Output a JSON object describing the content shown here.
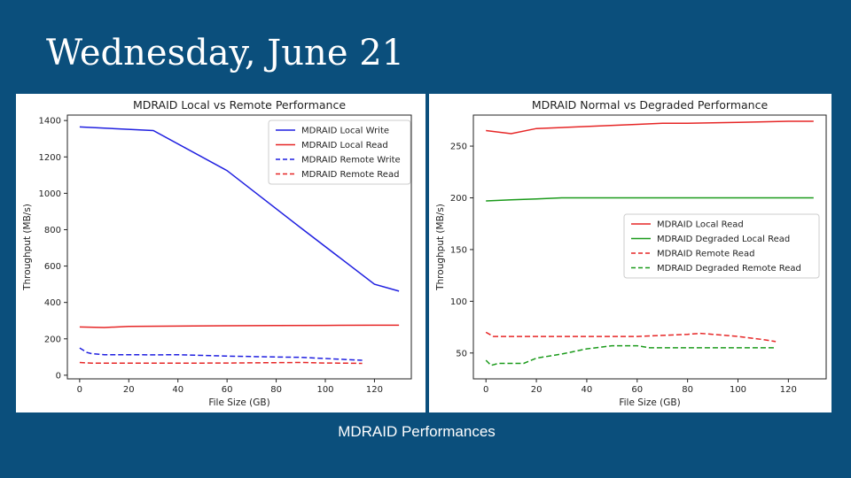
{
  "slide": {
    "title": "Wednesday, June 21",
    "caption": "MDRAID Performances",
    "background": "#0b4f7c"
  },
  "chart_data": [
    {
      "type": "line",
      "title": "MDRAID Local vs Remote Performance",
      "xlabel": "File Size (GB)",
      "ylabel": "Throughput (MB/s)",
      "xlim": [
        -5,
        135
      ],
      "ylim": [
        -20,
        1430
      ],
      "xticks": [
        0,
        20,
        40,
        60,
        80,
        100,
        120
      ],
      "yticks": [
        0,
        200,
        400,
        600,
        800,
        1000,
        1200,
        1400
      ],
      "grid": false,
      "legend_position": "top-right",
      "series": [
        {
          "name": "MDRAID Local Write",
          "color": "#1f1fe0",
          "dash": "solid",
          "x": [
            0,
            30,
            60,
            90,
            120,
            130
          ],
          "y": [
            1365,
            1345,
            1125,
            810,
            500,
            462
          ]
        },
        {
          "name": "MDRAID Local Read",
          "color": "#e62626",
          "dash": "solid",
          "x": [
            0,
            10,
            20,
            40,
            60,
            80,
            100,
            120,
            130
          ],
          "y": [
            265,
            262,
            268,
            270,
            272,
            273,
            274,
            275,
            275
          ]
        },
        {
          "name": "MDRAID Remote Write",
          "color": "#1f1fe0",
          "dash": "dashed",
          "x": [
            0,
            3,
            5,
            10,
            20,
            30,
            40,
            60,
            80,
            90,
            100,
            110,
            115
          ],
          "y": [
            150,
            125,
            118,
            113,
            113,
            112,
            113,
            105,
            100,
            98,
            92,
            85,
            82
          ]
        },
        {
          "name": "MDRAID Remote Read",
          "color": "#e62626",
          "dash": "dashed",
          "x": [
            0,
            5,
            20,
            40,
            60,
            80,
            90,
            100,
            110,
            115
          ],
          "y": [
            70,
            66,
            66,
            66,
            67,
            69,
            70,
            67,
            66,
            65
          ]
        }
      ]
    },
    {
      "type": "line",
      "title": "MDRAID Normal vs Degraded Performance",
      "xlabel": "File Size (GB)",
      "ylabel": "Throughput (MB/s)",
      "xlim": [
        -5,
        135
      ],
      "ylim": [
        25,
        280
      ],
      "xticks": [
        0,
        20,
        40,
        60,
        80,
        100,
        120
      ],
      "yticks": [
        50,
        100,
        150,
        200,
        250
      ],
      "grid": false,
      "legend_position": "center-right",
      "series": [
        {
          "name": "MDRAID Local Read",
          "color": "#e62626",
          "dash": "solid",
          "x": [
            0,
            10,
            20,
            40,
            60,
            70,
            80,
            100,
            120,
            130
          ],
          "y": [
            265,
            262,
            267,
            269,
            271,
            272,
            272,
            273,
            274,
            274
          ]
        },
        {
          "name": "MDRAID Degraded Local Read",
          "color": "#1a9a1a",
          "dash": "solid",
          "x": [
            0,
            10,
            20,
            30,
            40,
            60,
            80,
            100,
            120,
            130
          ],
          "y": [
            197,
            198,
            199,
            200,
            200,
            200,
            200,
            200,
            200,
            200
          ]
        },
        {
          "name": "MDRAID Remote Read",
          "color": "#e62626",
          "dash": "dashed",
          "x": [
            0,
            3,
            10,
            20,
            40,
            60,
            70,
            80,
            85,
            90,
            100,
            110,
            115
          ],
          "y": [
            70,
            66,
            66,
            66,
            66,
            66,
            67,
            68,
            69,
            68,
            66,
            63,
            61
          ]
        },
        {
          "name": "MDRAID Degraded Remote Read",
          "color": "#1a9a1a",
          "dash": "dashed",
          "x": [
            0,
            2,
            5,
            10,
            15,
            20,
            30,
            40,
            50,
            60,
            65,
            80,
            100,
            115
          ],
          "y": [
            43,
            38,
            40,
            40,
            40,
            45,
            49,
            54,
            57,
            57,
            55,
            55,
            55,
            55
          ]
        }
      ]
    }
  ]
}
